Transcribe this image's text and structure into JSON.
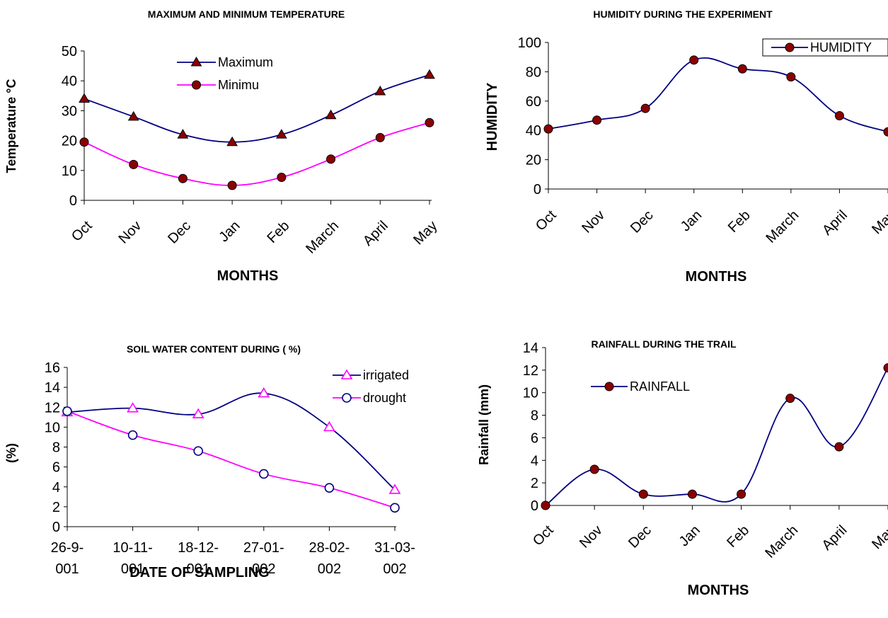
{
  "chart_data": [
    {
      "type": "line",
      "title": "MAXIMUM AND MINIMUM TEMPERATURE",
      "xlabel": "MONTHS",
      "ylabel": "Temperature °C",
      "categories": [
        "Oct",
        "Nov",
        "Dec",
        "Jan",
        "Feb",
        "March",
        "April",
        "May"
      ],
      "ylim": [
        0,
        50
      ],
      "yticks": [
        0,
        10,
        20,
        30,
        40,
        50
      ],
      "legend_position": "top-center",
      "series": [
        {
          "name": "Maximum",
          "values": [
            34,
            28,
            22,
            19.5,
            22,
            28.5,
            36.5,
            42
          ],
          "color": "#000080",
          "marker": "triangle",
          "marker_color": "#8b0000"
        },
        {
          "name": "Minimu",
          "values": [
            19.5,
            12,
            7.3,
            5,
            7.7,
            13.8,
            21,
            26
          ],
          "color": "#ff00ff",
          "marker": "circle",
          "marker_color": "#8b0000"
        }
      ]
    },
    {
      "type": "line",
      "title": "HUMIDITY DURING THE EXPERIMENT",
      "xlabel": "MONTHS",
      "ylabel": "HUMIDITY",
      "categories": [
        "Oct",
        "Nov",
        "Dec",
        "Jan",
        "Feb",
        "March",
        "April",
        "May"
      ],
      "ylim": [
        0,
        100
      ],
      "yticks": [
        0,
        20,
        40,
        60,
        80,
        100
      ],
      "legend_position": "top-right",
      "series": [
        {
          "name": "HUMIDITY",
          "values": [
            41,
            47,
            55,
            88,
            82,
            76.5,
            50,
            39
          ],
          "color": "#000080",
          "marker": "circle",
          "marker_color": "#8b0000"
        }
      ]
    },
    {
      "type": "line",
      "title": "SOIL WATER CONTENT DURING ( %)",
      "xlabel": "DATE OF SAMPLING",
      "ylabel": "(%)",
      "categories": [
        "26-9-001",
        "10-11-001",
        "18-12-001",
        "27-01-002",
        "28-02-002",
        "31-03-002"
      ],
      "category_lines": [
        [
          "26-9-",
          "001"
        ],
        [
          "10-11-",
          "001"
        ],
        [
          "18-12-",
          "001"
        ],
        [
          "27-01-",
          "002"
        ],
        [
          "28-02-",
          "002"
        ],
        [
          "31-03-",
          "002"
        ]
      ],
      "ylim": [
        0,
        16
      ],
      "yticks": [
        0,
        2,
        4,
        6,
        8,
        10,
        12,
        14,
        16
      ],
      "legend_position": "top-right",
      "series": [
        {
          "name": "irrigated",
          "values": [
            11.5,
            11.9,
            11.3,
            13.4,
            10,
            3.7
          ],
          "color": "#000080",
          "marker": "triangle-open",
          "marker_color": "#ff00ff"
        },
        {
          "name": "drought",
          "values": [
            11.6,
            9.2,
            7.6,
            5.3,
            3.9,
            1.9
          ],
          "color": "#ff00ff",
          "marker": "circle-open",
          "marker_color": "#000080"
        }
      ]
    },
    {
      "type": "line",
      "title": "RAINFALL DURING THE TRAIL",
      "xlabel": "MONTHS",
      "ylabel": "Rainfall (mm)",
      "categories": [
        "Oct",
        "Nov",
        "Dec",
        "Jan",
        "Feb",
        "March",
        "April",
        "May"
      ],
      "ylim": [
        0,
        14
      ],
      "yticks": [
        0,
        2,
        4,
        6,
        8,
        10,
        12,
        14
      ],
      "legend_position": "top-left",
      "series": [
        {
          "name": "RAINFALL",
          "values": [
            0,
            3.2,
            1,
            1,
            1,
            9.5,
            5.2,
            12.2
          ],
          "color": "#000080",
          "marker": "circle",
          "marker_color": "#8b0000"
        }
      ]
    }
  ]
}
